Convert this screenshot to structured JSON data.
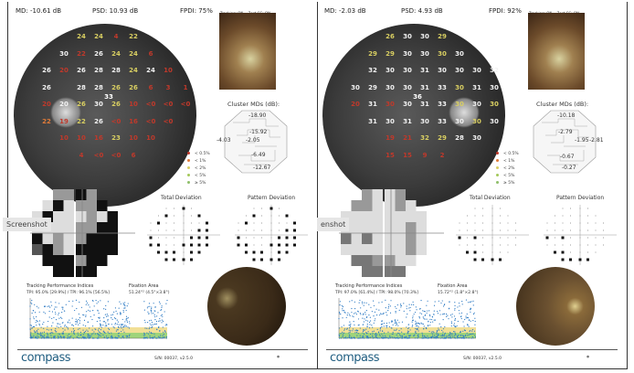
{
  "panels": [
    {
      "md": "MD: -10.61 dB",
      "psd": "PSD: 10.93 dB",
      "fpdi": "FPDI: 75%",
      "tracking": "Tracking: ON",
      "zest": "Zest CC: ON",
      "fovea": "33",
      "grid": [
        {
          "start": 2,
          "vals": [
            [
              "24",
              "y"
            ],
            [
              "24",
              "y"
            ],
            [
              "4",
              "r"
            ],
            [
              "22",
              "y"
            ]
          ]
        },
        {
          "start": 1,
          "vals": [
            [
              "30",
              "w"
            ],
            [
              "22",
              "r"
            ],
            [
              "26",
              "w"
            ],
            [
              "24",
              "y"
            ],
            [
              "24",
              "y"
            ],
            [
              "6",
              "r"
            ]
          ]
        },
        {
          "start": 0,
          "vals": [
            [
              "26",
              "w"
            ],
            [
              "20",
              "r"
            ],
            [
              "26",
              "w"
            ],
            [
              "28",
              "w"
            ],
            [
              "28",
              "w"
            ],
            [
              "24",
              "y"
            ],
            [
              "24",
              "w"
            ],
            [
              "10",
              "r"
            ]
          ]
        },
        {
          "start": 0,
          "vals": [
            [
              "26",
              "w"
            ],
            [
              "",
              ""
            ],
            [
              "28",
              "w"
            ],
            [
              "28",
              "w"
            ],
            [
              "26",
              "y"
            ],
            [
              "26",
              "y"
            ],
            [
              "6",
              "r"
            ],
            [
              "3",
              "r"
            ],
            [
              "1",
              "r"
            ]
          ]
        },
        {
          "start": 0,
          "vals": [
            [
              "20",
              "r"
            ],
            [
              "20",
              "w"
            ],
            [
              "26",
              "y"
            ],
            [
              "30",
              "w"
            ],
            [
              "26",
              "y"
            ],
            [
              "10",
              "r"
            ],
            [
              "<0",
              "r"
            ],
            [
              "<0",
              "r"
            ],
            [
              "<0",
              "r"
            ]
          ]
        },
        {
          "start": 0,
          "vals": [
            [
              "22",
              "o"
            ],
            [
              "19",
              "r"
            ],
            [
              "22",
              "y"
            ],
            [
              "26",
              "w"
            ],
            [
              "<0",
              "r"
            ],
            [
              "16",
              "r"
            ],
            [
              "<0",
              "r"
            ],
            [
              "<0",
              "r"
            ]
          ]
        },
        {
          "start": 1,
          "vals": [
            [
              "10",
              "r"
            ],
            [
              "10",
              "r"
            ],
            [
              "16",
              "r"
            ],
            [
              "23",
              "y"
            ],
            [
              "10",
              "r"
            ],
            [
              "10",
              "r"
            ]
          ]
        },
        {
          "start": 2,
          "vals": [
            [
              "4",
              "r"
            ],
            [
              "<0",
              "r"
            ],
            [
              "<0",
              "r"
            ],
            [
              "6",
              "r"
            ]
          ]
        }
      ],
      "cluster_title": "Cluster MDs (dB):",
      "cluster": [
        "-18.90",
        "-15.92",
        "-4.03",
        "-2.05",
        "-6.49",
        "-12.67"
      ],
      "tracking_title": "Tracking Performance Indices",
      "tpi": "TPI: 95.0% [29.9%] / TPI: 96.1% [56.5%]",
      "fix_title": "Fixation Area",
      "fix": "51.24°² (4.5°×3.8°)",
      "sn": "S/N: 00037, v2.5.0",
      "screenshot": "Screenshot"
    },
    {
      "md": "MD: -2.03 dB",
      "psd": "PSD: 4.93 dB",
      "fpdi": "FPDI: 92%",
      "tracking": "Tracking: ON",
      "zest": "Zest CC: ON",
      "fovea": "36",
      "grid": [
        {
          "start": 2,
          "vals": [
            [
              "26",
              "y"
            ],
            [
              "30",
              "w"
            ],
            [
              "30",
              "w"
            ],
            [
              "29",
              "y"
            ]
          ]
        },
        {
          "start": 1,
          "vals": [
            [
              "29",
              "y"
            ],
            [
              "29",
              "y"
            ],
            [
              "30",
              "w"
            ],
            [
              "30",
              "w"
            ],
            [
              "30",
              "y"
            ],
            [
              "30",
              "w"
            ]
          ]
        },
        {
          "start": 1,
          "vals": [
            [
              "32",
              "w"
            ],
            [
              "30",
              "w"
            ],
            [
              "30",
              "w"
            ],
            [
              "31",
              "w"
            ],
            [
              "30",
              "w"
            ],
            [
              "30",
              "w"
            ],
            [
              "30",
              "w"
            ],
            [
              "32",
              "w"
            ]
          ]
        },
        {
          "start": 0,
          "vals": [
            [
              "30",
              "w"
            ],
            [
              "29",
              "w"
            ],
            [
              "30",
              "w"
            ],
            [
              "30",
              "w"
            ],
            [
              "31",
              "w"
            ],
            [
              "33",
              "w"
            ],
            [
              "30",
              "y"
            ],
            [
              "31",
              "w"
            ],
            [
              "30",
              "w"
            ]
          ]
        },
        {
          "start": 0,
          "vals": [
            [
              "20",
              "r"
            ],
            [
              "31",
              "w"
            ],
            [
              "30",
              "r"
            ],
            [
              "30",
              "w"
            ],
            [
              "31",
              "w"
            ],
            [
              "33",
              "w"
            ],
            [
              "30",
              "y"
            ],
            [
              "30",
              "w"
            ],
            [
              "30",
              "y"
            ]
          ]
        },
        {
          "start": 1,
          "vals": [
            [
              "31",
              "w"
            ],
            [
              "30",
              "w"
            ],
            [
              "31",
              "w"
            ],
            [
              "30",
              "w"
            ],
            [
              "33",
              "w"
            ],
            [
              "30",
              "w"
            ],
            [
              "30",
              "y"
            ],
            [
              "30",
              "w"
            ]
          ]
        },
        {
          "start": 2,
          "vals": [
            [
              "19",
              "r"
            ],
            [
              "21",
              "r"
            ],
            [
              "32",
              "y"
            ],
            [
              "29",
              "y"
            ],
            [
              "28",
              "w"
            ],
            [
              "30",
              "w"
            ]
          ]
        },
        {
          "start": 2,
          "vals": [
            [
              "15",
              "r"
            ],
            [
              "15",
              "r"
            ],
            [
              "9",
              "r"
            ],
            [
              "2",
              "r"
            ]
          ]
        }
      ],
      "cluster_title": "Cluster MDs (dB):",
      "cluster": [
        "-10.18",
        "-2.79",
        "-1.95",
        "-2.81",
        "-0.67",
        "-0.27"
      ],
      "tracking_title": "Tracking Performance Indices",
      "tpi": "TPI: 97.0% [61.4%] / TPI: 98.0% [70.3%]",
      "fix_title": "Fixation Area",
      "fix": "15.72°² (1.8°×2.8°)",
      "sn": "S/N: 00037, v2.5.0",
      "screenshot": "enshot"
    }
  ],
  "legend": [
    "< 0.5%",
    "< 1%",
    "< 2%",
    "< 5%",
    "≥ 5%"
  ],
  "total_deviation": "Total Deviation",
  "pattern_deviation": "Pattern Deviation",
  "brand": "compass",
  "colors": {
    "r": "#c0392b",
    "o": "#e07b39",
    "y": "#d9cf62",
    "g": "#a3c85a",
    "w": "#f2f2f2",
    "blue": "#2e7bc4"
  }
}
